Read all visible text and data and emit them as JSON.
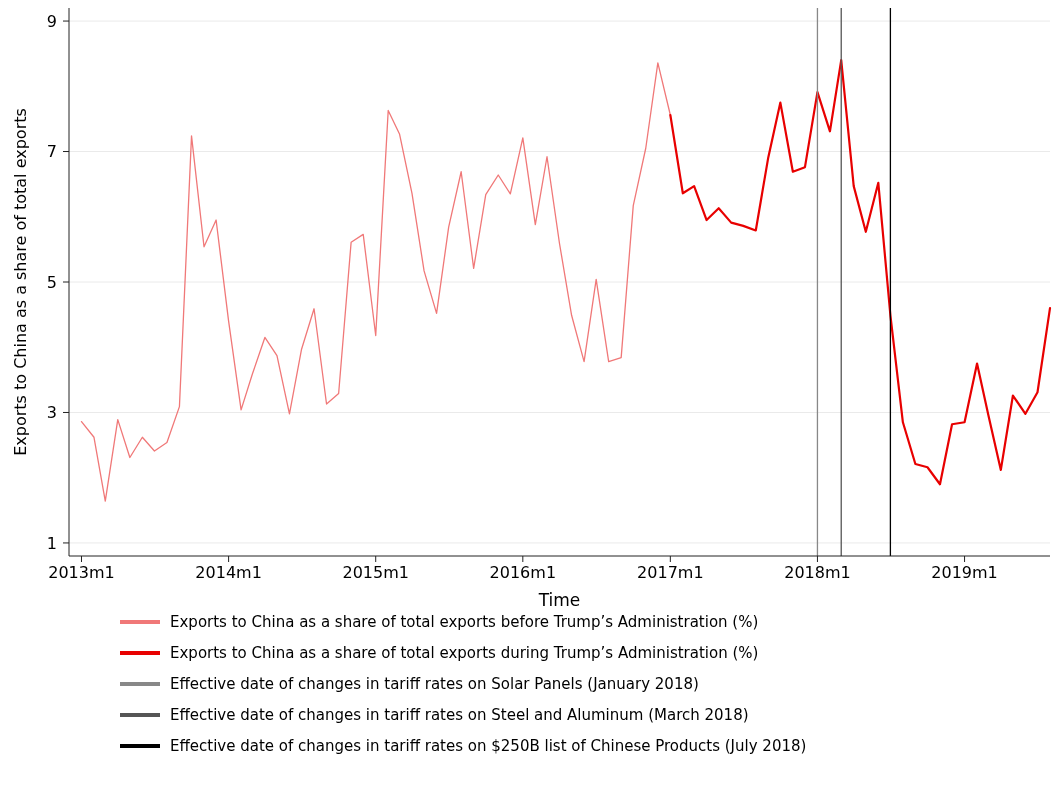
{
  "chart_data": {
    "type": "line",
    "xlabel": "Time",
    "ylabel": "Exports to China as a share of total exports",
    "xlim": [
      "2012-12",
      "2019-08"
    ],
    "ylim": [
      0.8,
      9.2
    ],
    "xticks": [
      {
        "value": "2013-01",
        "label": "2013m1"
      },
      {
        "value": "2014-01",
        "label": "2014m1"
      },
      {
        "value": "2015-01",
        "label": "2015m1"
      },
      {
        "value": "2016-01",
        "label": "2016m1"
      },
      {
        "value": "2017-01",
        "label": "2017m1"
      },
      {
        "value": "2018-01",
        "label": "2018m1"
      },
      {
        "value": "2019-01",
        "label": "2019m1"
      }
    ],
    "yticks": [
      1,
      3,
      5,
      7,
      9
    ],
    "grid": "y",
    "legend": "bottom",
    "series": [
      {
        "name": "Exports to China as a share of total exports before Trump’s Administration (%)",
        "color": "#f07878",
        "x": [
          "2013-01",
          "2013-02",
          "2013-03",
          "2013-04",
          "2013-05",
          "2013-06",
          "2013-07",
          "2013-08",
          "2013-09",
          "2013-10",
          "2013-11",
          "2013-12",
          "2014-01",
          "2014-02",
          "2014-03",
          "2014-04",
          "2014-05",
          "2014-06",
          "2014-07",
          "2014-08",
          "2014-09",
          "2014-10",
          "2014-11",
          "2014-12",
          "2015-01",
          "2015-02",
          "2015-03",
          "2015-04",
          "2015-05",
          "2015-06",
          "2015-07",
          "2015-08",
          "2015-09",
          "2015-10",
          "2015-11",
          "2015-12",
          "2016-01",
          "2016-02",
          "2016-03",
          "2016-04",
          "2016-05",
          "2016-06",
          "2016-07",
          "2016-08",
          "2016-09",
          "2016-10",
          "2016-11",
          "2016-12",
          "2017-01"
        ],
        "values": [
          2.86,
          2.62,
          1.64,
          2.89,
          2.31,
          2.62,
          2.41,
          2.54,
          3.09,
          7.24,
          5.54,
          5.95,
          4.4,
          3.04,
          3.59,
          4.15,
          3.87,
          2.98,
          3.97,
          4.59,
          3.13,
          3.29,
          5.61,
          5.73,
          4.18,
          7.63,
          7.27,
          6.36,
          5.17,
          4.52,
          5.84,
          6.69,
          5.21,
          6.34,
          6.64,
          6.35,
          7.21,
          5.88,
          6.92,
          5.59,
          4.49,
          3.78,
          5.04,
          3.78,
          3.84,
          6.17,
          7.05,
          8.36,
          7.56
        ]
      },
      {
        "name": "Exports to China as a share of total exports during Trump’s Administration (%)",
        "color": "#e80000",
        "x": [
          "2017-01",
          "2017-02",
          "2017-03",
          "2017-04",
          "2017-05",
          "2017-06",
          "2017-07",
          "2017-08",
          "2017-09",
          "2017-10",
          "2017-11",
          "2017-12",
          "2018-01",
          "2018-02",
          "2018-03",
          "2018-04",
          "2018-05",
          "2018-06",
          "2018-07",
          "2018-08",
          "2018-09",
          "2018-10",
          "2018-11",
          "2018-12",
          "2019-01",
          "2019-02",
          "2019-03",
          "2019-04",
          "2019-05",
          "2019-06",
          "2019-07",
          "2019-08"
        ],
        "values": [
          7.56,
          6.36,
          6.47,
          5.95,
          6.13,
          5.91,
          5.86,
          5.79,
          6.91,
          7.75,
          6.69,
          6.76,
          7.91,
          7.31,
          8.4,
          6.47,
          5.77,
          6.52,
          4.49,
          2.85,
          2.21,
          2.16,
          1.9,
          2.82,
          2.85,
          3.75,
          2.96,
          2.12,
          3.26,
          2.98,
          3.31,
          4.6
        ]
      }
    ],
    "ref_lines": [
      {
        "axis": "x",
        "value": "2018-01",
        "label": "Effective date of changes in tariff rates on Solar Panels (January 2018)",
        "color": "#888888"
      },
      {
        "axis": "x",
        "value": "2018-03",
        "label": "Effective date of changes in tariff rates on Steel and Aluminum (March 2018)",
        "color": "#555555"
      },
      {
        "axis": "x",
        "value": "2018-07",
        "label": "Effective date of changes in tariff rates on $250B list of Chinese Products (July 2018)",
        "color": "#000000"
      }
    ]
  }
}
